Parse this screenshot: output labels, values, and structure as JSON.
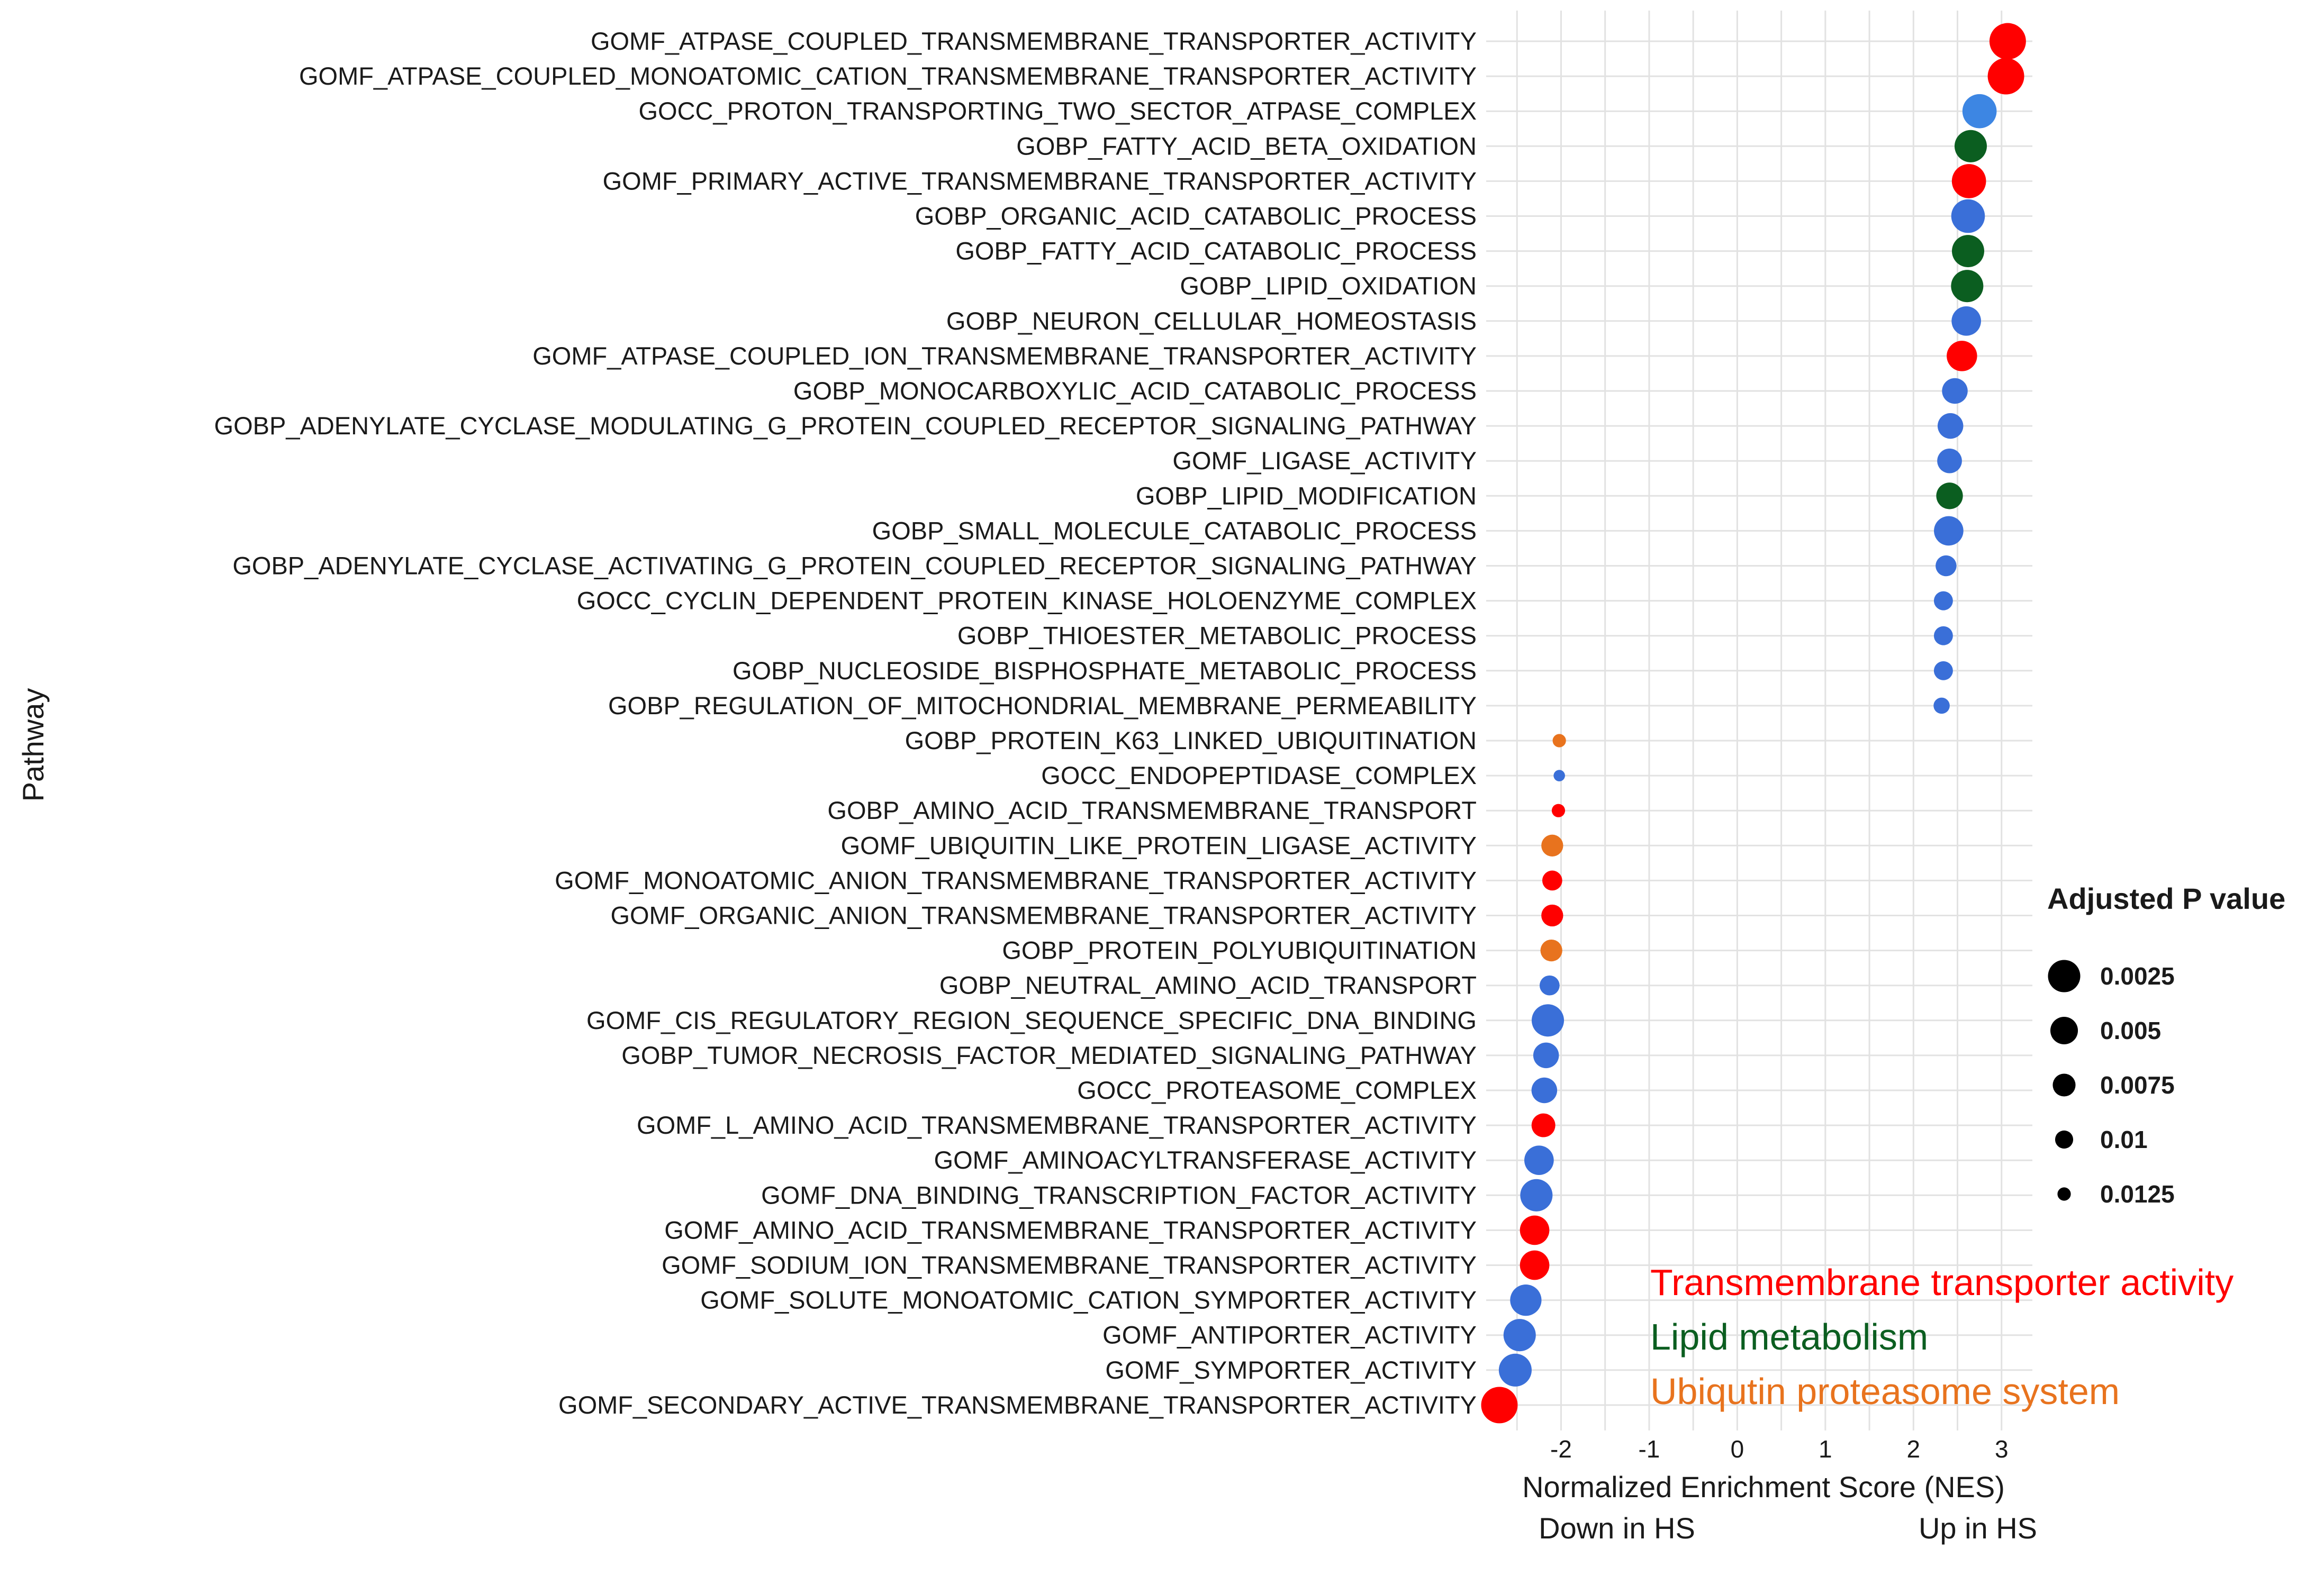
{
  "chart_data": {
    "type": "scatter",
    "ylabel": "Pathway",
    "xlabel": "Normalized Enrichment Score (NES)",
    "x_direction_labels": {
      "down": "Down in HS",
      "up": "Up in HS"
    },
    "xlim": [
      -2.85,
      3.35
    ],
    "x_ticks": [
      -2,
      -1,
      0,
      1,
      2,
      3
    ],
    "grid": true,
    "size_legend": {
      "title": "Adjusted P value",
      "entries": [
        {
          "label": "0.0025",
          "value": 0.0025
        },
        {
          "label": "0.005",
          "value": 0.005
        },
        {
          "label": "0.0075",
          "value": 0.0075
        },
        {
          "label": "0.01",
          "value": 0.01
        },
        {
          "label": "0.0125",
          "value": 0.0125
        }
      ]
    },
    "categories_legend": [
      {
        "label": "Transmembrane transporter activity",
        "color": "#ff0000"
      },
      {
        "label": "Lipid metabolism",
        "color": "#0b5e20"
      },
      {
        "label": "Ubiqutin proteasome system",
        "color": "#e8731e"
      }
    ],
    "colors": {
      "blue": "#3a6fd8",
      "light_blue": "#3d86e3"
    },
    "points": [
      {
        "pathway": "GOMF_ATPASE_COUPLED_TRANSMEMBRANE_TRANSPORTER_ACTIVITY",
        "nes": 3.07,
        "padj": 0.0003,
        "color": "#ff0000"
      },
      {
        "pathway": "GOMF_ATPASE_COUPLED_MONOATOMIC_CATION_TRANSMEMBRANE_TRANSPORTER_ACTIVITY",
        "nes": 3.05,
        "padj": 0.0003,
        "color": "#ff0000"
      },
      {
        "pathway": "GOCC_PROTON_TRANSPORTING_TWO_SECTOR_ATPASE_COMPLEX",
        "nes": 2.75,
        "padj": 0.0015,
        "color": "#3d86e3"
      },
      {
        "pathway": "GOBP_FATTY_ACID_BETA_OXIDATION",
        "nes": 2.65,
        "padj": 0.0025,
        "color": "#0b5e20"
      },
      {
        "pathway": "GOMF_PRIMARY_ACTIVE_TRANSMEMBRANE_TRANSPORTER_ACTIVITY",
        "nes": 2.63,
        "padj": 0.0015,
        "color": "#ff0000"
      },
      {
        "pathway": "GOBP_ORGANIC_ACID_CATABOLIC_PROCESS",
        "nes": 2.62,
        "padj": 0.0018,
        "color": "#3a6fd8"
      },
      {
        "pathway": "GOBP_FATTY_ACID_CATABOLIC_PROCESS",
        "nes": 2.62,
        "padj": 0.0025,
        "color": "#0b5e20"
      },
      {
        "pathway": "GOBP_LIPID_OXIDATION",
        "nes": 2.61,
        "padj": 0.0025,
        "color": "#0b5e20"
      },
      {
        "pathway": "GOBP_NEURON_CELLULAR_HOMEOSTASIS",
        "nes": 2.6,
        "padj": 0.004,
        "color": "#3a6fd8"
      },
      {
        "pathway": "GOMF_ATPASE_COUPLED_ION_TRANSMEMBRANE_TRANSPORTER_ACTIVITY",
        "nes": 2.55,
        "padj": 0.0035,
        "color": "#ff0000"
      },
      {
        "pathway": "GOBP_MONOCARBOXYLIC_ACID_CATABOLIC_PROCESS",
        "nes": 2.47,
        "padj": 0.006,
        "color": "#3a6fd8"
      },
      {
        "pathway": "GOBP_ADENYLATE_CYCLASE_MODULATING_G_PROTEIN_COUPLED_RECEPTOR_SIGNALING_PATHWAY",
        "nes": 2.42,
        "padj": 0.006,
        "color": "#3a6fd8"
      },
      {
        "pathway": "GOMF_LIGASE_ACTIVITY",
        "nes": 2.41,
        "padj": 0.0065,
        "color": "#3a6fd8"
      },
      {
        "pathway": "GOBP_LIPID_MODIFICATION",
        "nes": 2.41,
        "padj": 0.0055,
        "color": "#0b5e20"
      },
      {
        "pathway": "GOBP_SMALL_MOLECULE_CATABOLIC_PROCESS",
        "nes": 2.4,
        "padj": 0.004,
        "color": "#3a6fd8"
      },
      {
        "pathway": "GOBP_ADENYLATE_CYCLASE_ACTIVATING_G_PROTEIN_COUPLED_RECEPTOR_SIGNALING_PATHWAY",
        "nes": 2.37,
        "padj": 0.0085,
        "color": "#3a6fd8"
      },
      {
        "pathway": "GOCC_CYCLIN_DEPENDENT_PROTEIN_KINASE_HOLOENZYME_COMPLEX",
        "nes": 2.34,
        "padj": 0.0095,
        "color": "#3a6fd8"
      },
      {
        "pathway": "GOBP_THIOESTER_METABOLIC_PROCESS",
        "nes": 2.34,
        "padj": 0.0095,
        "color": "#3a6fd8"
      },
      {
        "pathway": "GOBP_NUCLEOSIDE_BISPHOSPHATE_METABOLIC_PROCESS",
        "nes": 2.34,
        "padj": 0.0095,
        "color": "#3a6fd8"
      },
      {
        "pathway": "GOBP_REGULATION_OF_MITOCHONDRIAL_MEMBRANE_PERMEABILITY",
        "nes": 2.32,
        "padj": 0.011,
        "color": "#3a6fd8"
      },
      {
        "pathway": "GOBP_PROTEIN_K63_LINKED_UBIQUITINATION",
        "nes": -2.02,
        "padj": 0.0125,
        "color": "#e8731e"
      },
      {
        "pathway": "GOCC_ENDOPEPTIDASE_COMPLEX",
        "nes": -2.02,
        "padj": 0.0135,
        "color": "#3a6fd8"
      },
      {
        "pathway": "GOBP_AMINO_ACID_TRANSMEMBRANE_TRANSPORT",
        "nes": -2.03,
        "padj": 0.0125,
        "color": "#ff0000"
      },
      {
        "pathway": "GOMF_UBIQUITIN_LIKE_PROTEIN_LIGASE_ACTIVITY",
        "nes": -2.1,
        "padj": 0.008,
        "color": "#e8731e"
      },
      {
        "pathway": "GOMF_MONOATOMIC_ANION_TRANSMEMBRANE_TRANSPORTER_ACTIVITY",
        "nes": -2.1,
        "padj": 0.009,
        "color": "#ff0000"
      },
      {
        "pathway": "GOMF_ORGANIC_ANION_TRANSMEMBRANE_TRANSPORTER_ACTIVITY",
        "nes": -2.1,
        "padj": 0.008,
        "color": "#ff0000"
      },
      {
        "pathway": "GOBP_PROTEIN_POLYUBIQUITINATION",
        "nes": -2.11,
        "padj": 0.008,
        "color": "#e8731e"
      },
      {
        "pathway": "GOBP_NEUTRAL_AMINO_ACID_TRANSPORT",
        "nes": -2.13,
        "padj": 0.009,
        "color": "#3a6fd8"
      },
      {
        "pathway": "GOMF_CIS_REGULATORY_REGION_SEQUENCE_SPECIFIC_DNA_BINDING",
        "nes": -2.15,
        "padj": 0.0025,
        "color": "#3a6fd8"
      },
      {
        "pathway": "GOBP_TUMOR_NECROSIS_FACTOR_MEDIATED_SIGNALING_PATHWAY",
        "nes": -2.17,
        "padj": 0.006,
        "color": "#3a6fd8"
      },
      {
        "pathway": "GOCC_PROTEASOME_COMPLEX",
        "nes": -2.19,
        "padj": 0.006,
        "color": "#3a6fd8"
      },
      {
        "pathway": "GOMF_L_AMINO_ACID_TRANSMEMBRANE_TRANSPORTER_ACTIVITY",
        "nes": -2.2,
        "padj": 0.007,
        "color": "#ff0000"
      },
      {
        "pathway": "GOMF_AMINOACYLTRANSFERASE_ACTIVITY",
        "nes": -2.25,
        "padj": 0.004,
        "color": "#3a6fd8"
      },
      {
        "pathway": "GOMF_DNA_BINDING_TRANSCRIPTION_FACTOR_ACTIVITY",
        "nes": -2.28,
        "padj": 0.0025,
        "color": "#3a6fd8"
      },
      {
        "pathway": "GOMF_AMINO_ACID_TRANSMEMBRANE_TRANSPORTER_ACTIVITY",
        "nes": -2.3,
        "padj": 0.004,
        "color": "#ff0000"
      },
      {
        "pathway": "GOMF_SODIUM_ION_TRANSMEMBRANE_TRANSPORTER_ACTIVITY",
        "nes": -2.3,
        "padj": 0.004,
        "color": "#ff0000"
      },
      {
        "pathway": "GOMF_SOLUTE_MONOATOMIC_CATION_SYMPORTER_ACTIVITY",
        "nes": -2.4,
        "padj": 0.003,
        "color": "#3a6fd8"
      },
      {
        "pathway": "GOMF_ANTIPORTER_ACTIVITY",
        "nes": -2.47,
        "padj": 0.0025,
        "color": "#3a6fd8"
      },
      {
        "pathway": "GOMF_SYMPORTER_ACTIVITY",
        "nes": -2.52,
        "padj": 0.0022,
        "color": "#3a6fd8"
      },
      {
        "pathway": "GOMF_SECONDARY_ACTIVE_TRANSMEMBRANE_TRANSPORTER_ACTIVITY",
        "nes": -2.7,
        "padj": 0.0003,
        "color": "#ff0000"
      }
    ]
  }
}
